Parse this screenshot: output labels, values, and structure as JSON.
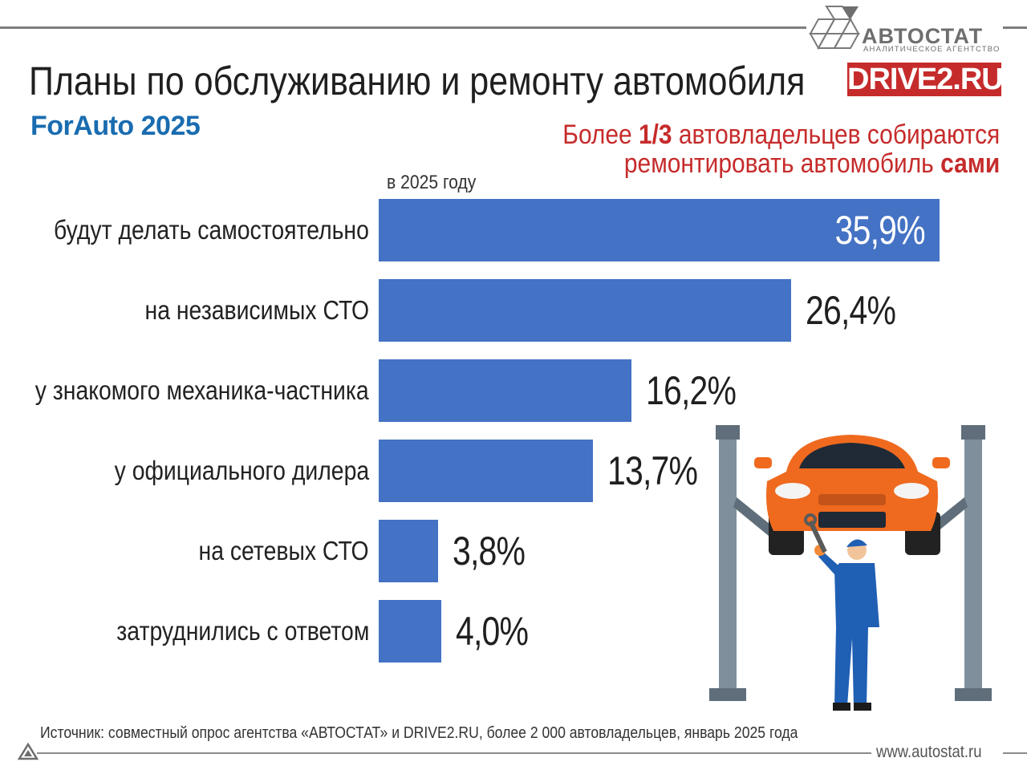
{
  "header": {
    "title": "Планы по обслуживанию и ремонту автомобиля",
    "subtitle": "ForAuto 2025",
    "logo_name": "АВТОСТАТ",
    "logo_sub": "АНАЛИТИЧЕСКОЕ АГЕНТСТВО",
    "partner_logo": "DRIVE2.RU"
  },
  "callout": {
    "line1_pre": "Более ",
    "line1_bold": "1/3",
    "line1_post": " автовладельцев собираются",
    "line2_pre": "ремонтировать автомобиль ",
    "line2_bold": "сами"
  },
  "colors": {
    "bar": "#4472c4",
    "accent": "#c62b2b",
    "subtitle": "#1a6cb0"
  },
  "chart_data": {
    "type": "bar",
    "orientation": "horizontal",
    "series_label": "в 2025 году",
    "categories": [
      "будут делать самостоятельно",
      "на независимых СТО",
      "у знакомого механика-частника",
      "у официального дилера",
      "на сетевых СТО",
      "затруднились с ответом"
    ],
    "values": [
      35.9,
      26.4,
      16.2,
      13.7,
      3.8,
      4.0
    ],
    "value_labels": [
      "35,9%",
      "26,4%",
      "16,2%",
      "13,7%",
      "3,8%",
      "4,0%"
    ],
    "unit": "%",
    "grid": false,
    "legend": "none"
  },
  "footer": {
    "source": "Источник: совместный опрос агентства «АВТОСТАТ» и DRIVE2.RU, более 2 000 автовладельцев, январь 2025 года",
    "site": "www.autostat.ru"
  },
  "icons": {
    "brand": "autostat-logo-icon",
    "illustration": "mechanic-car-lift-illustration",
    "corner": "autostat-triangle-icon"
  }
}
